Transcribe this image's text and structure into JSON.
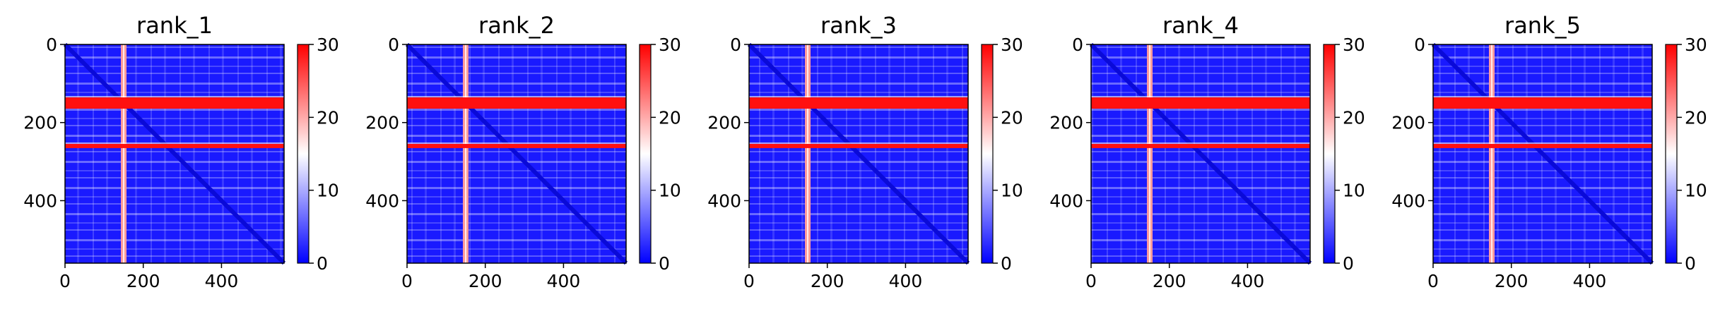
{
  "chart_data": [
    {
      "type": "heatmap",
      "title": "rank_1",
      "matrix_size": 560,
      "xticks": [
        0,
        200,
        400
      ],
      "yticks": [
        0,
        200,
        400
      ],
      "colorbar": {
        "min": 0,
        "max": 30,
        "ticks": [
          0,
          10,
          20,
          30
        ]
      },
      "bright_rows": [
        150,
        260
      ],
      "bright_cols": [
        150
      ],
      "diagonal": true
    },
    {
      "type": "heatmap",
      "title": "rank_2",
      "matrix_size": 560,
      "xticks": [
        0,
        200,
        400
      ],
      "yticks": [
        0,
        200,
        400
      ],
      "colorbar": {
        "min": 0,
        "max": 30,
        "ticks": [
          0,
          10,
          20,
          30
        ]
      },
      "bright_rows": [
        150,
        260
      ],
      "bright_cols": [
        150
      ],
      "diagonal": true
    },
    {
      "type": "heatmap",
      "title": "rank_3",
      "matrix_size": 560,
      "xticks": [
        0,
        200,
        400
      ],
      "yticks": [
        0,
        200,
        400
      ],
      "colorbar": {
        "min": 0,
        "max": 30,
        "ticks": [
          0,
          10,
          20,
          30
        ]
      },
      "bright_rows": [
        150,
        260
      ],
      "bright_cols": [
        150
      ],
      "diagonal": true
    },
    {
      "type": "heatmap",
      "title": "rank_4",
      "matrix_size": 560,
      "xticks": [
        0,
        200,
        400
      ],
      "yticks": [
        0,
        200,
        400
      ],
      "colorbar": {
        "min": 0,
        "max": 30,
        "ticks": [
          0,
          10,
          20,
          30
        ]
      },
      "bright_rows": [
        150,
        260
      ],
      "bright_cols": [
        150
      ],
      "diagonal": true
    },
    {
      "type": "heatmap",
      "title": "rank_5",
      "matrix_size": 560,
      "xticks": [
        0,
        200,
        400
      ],
      "yticks": [
        0,
        200,
        400
      ],
      "colorbar": {
        "min": 0,
        "max": 30,
        "ticks": [
          0,
          10,
          20,
          30
        ]
      },
      "bright_rows": [
        150,
        260
      ],
      "bright_cols": [
        150
      ],
      "diagonal": true
    }
  ]
}
